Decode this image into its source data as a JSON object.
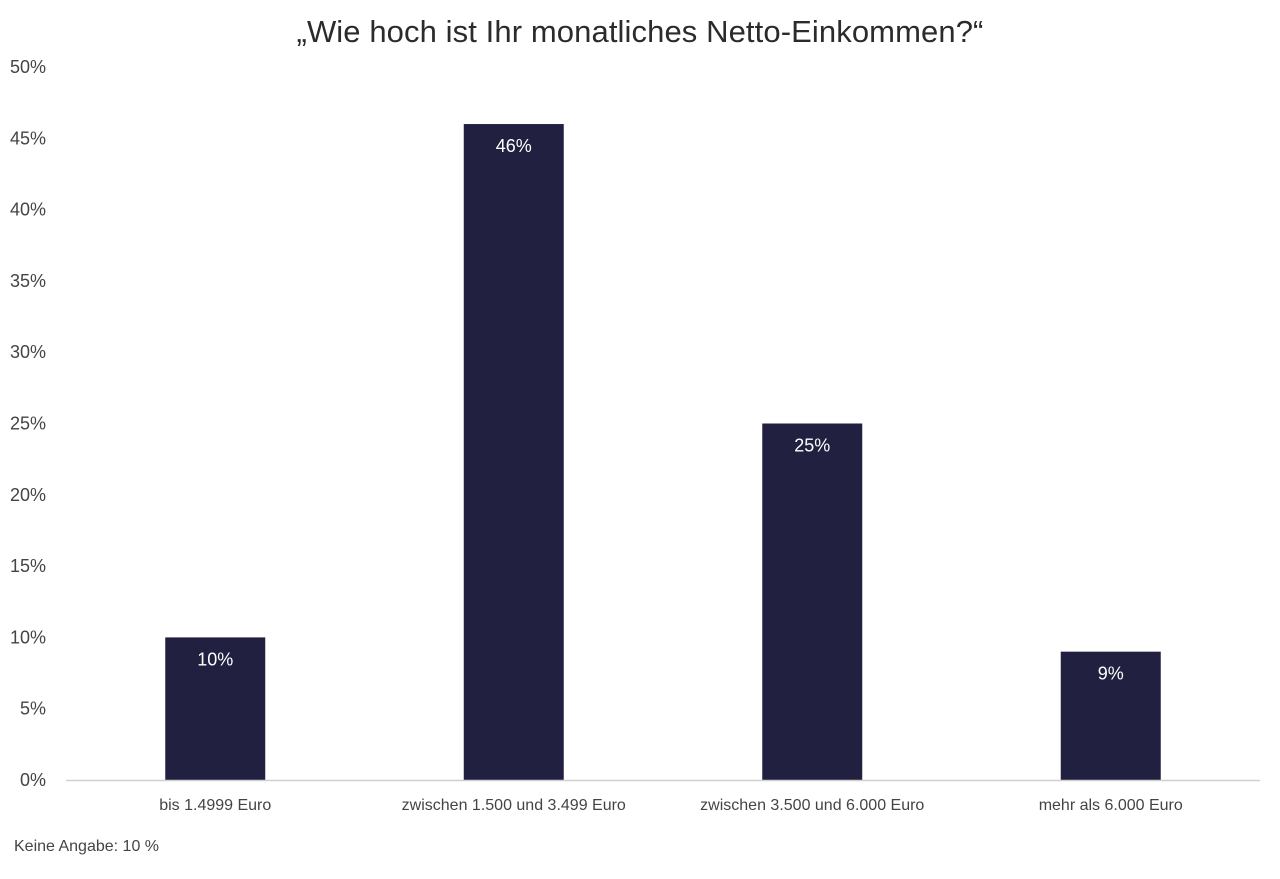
{
  "chart_data": {
    "type": "bar",
    "title": "„Wie hoch ist Ihr monatliches Netto-Einkommen?“",
    "categories": [
      "bis 1.4999 Euro",
      "zwischen 1.500 und 3.499 Euro",
      "zwischen 3.500 und 6.000 Euro",
      "mehr als 6.000 Euro"
    ],
    "values": [
      10,
      46,
      25,
      9
    ],
    "data_labels": [
      "10%",
      "46%",
      "25%",
      "9%"
    ],
    "ylim": [
      0,
      50
    ],
    "y_ticks": [
      0,
      5,
      10,
      15,
      20,
      25,
      30,
      35,
      40,
      45,
      50
    ],
    "y_tick_labels": [
      "0%",
      "5%",
      "10%",
      "15%",
      "20%",
      "25%",
      "30%",
      "35%",
      "40%",
      "45%",
      "50%"
    ],
    "xlabel": "",
    "ylabel": "",
    "grid": false,
    "legend": "none",
    "bar_color": "#212040",
    "axis_color": "#d0d0d0"
  },
  "footnote": "Keine Angabe: 10 %"
}
